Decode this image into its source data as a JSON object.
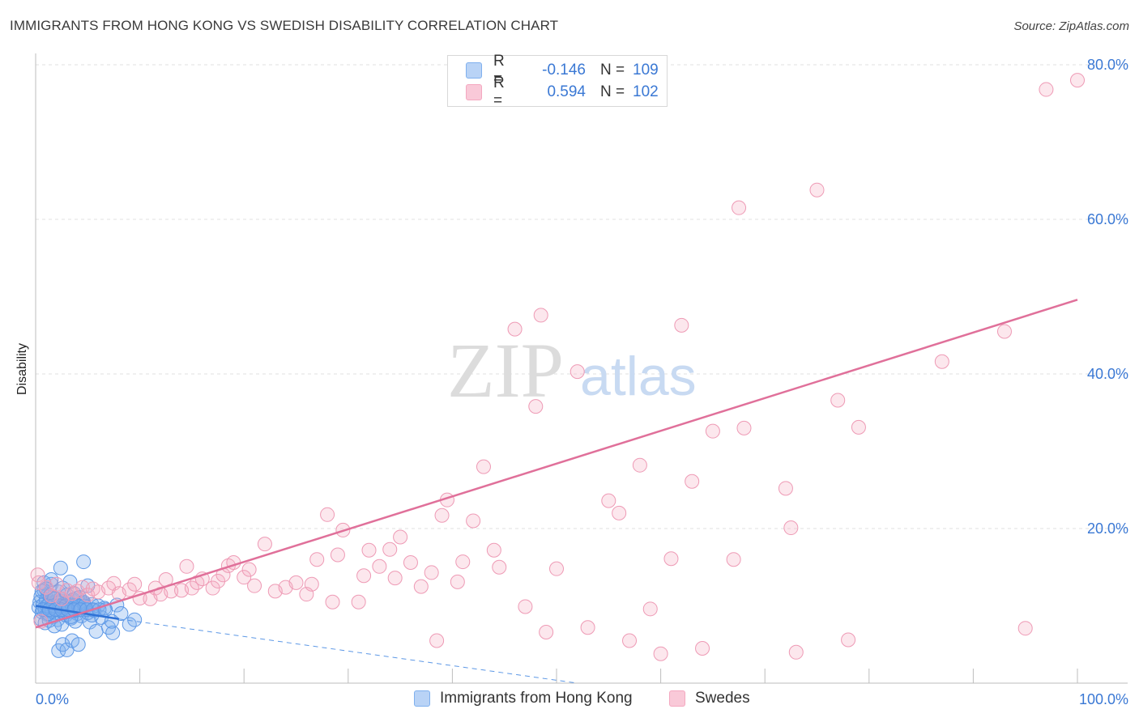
{
  "title": "IMMIGRANTS FROM HONG KONG VS SWEDISH DISABILITY CORRELATION CHART",
  "source": "Source: ZipAtlas.com",
  "watermark": {
    "zip": "ZIP",
    "atlas": "atlas"
  },
  "legend": {
    "rows": [
      {
        "r_label": "R =",
        "r_value": "-0.146",
        "n_label": "N =",
        "n_value": "109",
        "color": "#7fb0ee"
      },
      {
        "r_label": "R =",
        "r_value": "0.594",
        "n_label": "N =",
        "n_value": "102",
        "color": "#f4a8c0"
      }
    ]
  },
  "bottom_legend": [
    {
      "label": "Immigrants from Hong Kong",
      "color": "#7fb0ee"
    },
    {
      "label": "Swedes",
      "color": "#f4a8c0"
    }
  ],
  "chart_data": {
    "type": "scatter",
    "title": "IMMIGRANTS FROM HONG KONG VS SWEDISH DISABILITY CORRELATION CHART",
    "xlabel": "",
    "ylabel": "Disability",
    "xlim": [
      0,
      100
    ],
    "ylim": [
      0,
      80
    ],
    "x_tick_labels": [
      {
        "value": 0,
        "label": "0.0%"
      },
      {
        "value": 100,
        "label": "100.0%"
      }
    ],
    "y_tick_labels": [
      {
        "value": 20,
        "label": "20.0%"
      },
      {
        "value": 40,
        "label": "40.0%"
      },
      {
        "value": 60,
        "label": "60.0%"
      },
      {
        "value": 80,
        "label": "80.0%"
      }
    ],
    "grid": "horizontal dashed",
    "series": [
      {
        "name": "Immigrants from Hong Kong",
        "color": "#7fb0ee",
        "trend": {
          "x": [
            0,
            8
          ],
          "y": [
            10.0,
            8.3
          ],
          "dashed_extension_to": [
            52,
            0.0
          ]
        },
        "points": [
          [
            0.3,
            9.8
          ],
          [
            0.4,
            10.5
          ],
          [
            0.5,
            11.2
          ],
          [
            0.6,
            9.2
          ],
          [
            0.7,
            10.1
          ],
          [
            0.8,
            12.0
          ],
          [
            0.9,
            9.5
          ],
          [
            1.0,
            10.8
          ],
          [
            1.1,
            8.9
          ],
          [
            1.2,
            11.5
          ],
          [
            1.3,
            10.2
          ],
          [
            1.4,
            9.7
          ],
          [
            1.5,
            12.8
          ],
          [
            1.6,
            10.4
          ],
          [
            1.7,
            8.6
          ],
          [
            1.8,
            11.0
          ],
          [
            1.9,
            9.9
          ],
          [
            2.0,
            10.6
          ],
          [
            2.1,
            8.2
          ],
          [
            2.2,
            11.8
          ],
          [
            2.3,
            9.4
          ],
          [
            2.4,
            10.9
          ],
          [
            2.5,
            7.6
          ],
          [
            2.6,
            12.3
          ],
          [
            2.7,
            9.1
          ],
          [
            2.8,
            10.3
          ],
          [
            2.9,
            8.8
          ],
          [
            3.0,
            11.4
          ],
          [
            3.1,
            9.6
          ],
          [
            3.2,
            10.0
          ],
          [
            3.3,
            13.1
          ],
          [
            3.4,
            8.4
          ],
          [
            3.5,
            10.7
          ],
          [
            3.6,
            9.3
          ],
          [
            3.7,
            11.6
          ],
          [
            3.8,
            8.0
          ],
          [
            3.9,
            10.1
          ],
          [
            4.0,
            9.0
          ],
          [
            4.2,
            11.1
          ],
          [
            4.4,
            8.7
          ],
          [
            4.6,
            10.5
          ],
          [
            4.8,
            9.8
          ],
          [
            5.0,
            12.6
          ],
          [
            5.2,
            7.9
          ],
          [
            5.4,
            10.2
          ],
          [
            5.6,
            9.4
          ],
          [
            5.8,
            6.7
          ],
          [
            6.0,
            10.0
          ],
          [
            6.3,
            8.5
          ],
          [
            6.6,
            9.7
          ],
          [
            7.0,
            7.2
          ],
          [
            7.4,
            6.5
          ],
          [
            7.8,
            10.1
          ],
          [
            8.2,
            9.0
          ],
          [
            0.5,
            8.3
          ],
          [
            0.9,
            7.8
          ],
          [
            1.3,
            8.1
          ],
          [
            1.8,
            7.4
          ],
          [
            2.2,
            4.2
          ],
          [
            2.6,
            5.0
          ],
          [
            3.0,
            4.3
          ],
          [
            3.5,
            5.5
          ],
          [
            4.1,
            5.0
          ],
          [
            0.8,
            13.0
          ],
          [
            1.5,
            13.4
          ],
          [
            2.4,
            14.9
          ],
          [
            4.6,
            15.7
          ],
          [
            1.2,
            9.0
          ],
          [
            1.6,
            9.3
          ],
          [
            2.0,
            9.6
          ],
          [
            2.4,
            9.9
          ],
          [
            2.8,
            10.2
          ],
          [
            3.2,
            10.5
          ],
          [
            3.6,
            10.8
          ],
          [
            4.0,
            11.0
          ],
          [
            0.6,
            11.9
          ],
          [
            1.0,
            12.2
          ],
          [
            1.4,
            11.3
          ],
          [
            1.8,
            10.9
          ],
          [
            2.2,
            10.4
          ],
          [
            2.6,
            9.8
          ],
          [
            3.0,
            9.2
          ],
          [
            3.4,
            8.6
          ],
          [
            3.8,
            9.4
          ],
          [
            4.2,
            9.9
          ],
          [
            4.6,
            10.3
          ],
          [
            5.0,
            9.1
          ],
          [
            5.4,
            8.8
          ],
          [
            1.1,
            10.0
          ],
          [
            1.7,
            10.0
          ],
          [
            2.3,
            10.0
          ],
          [
            2.9,
            10.0
          ],
          [
            3.5,
            10.0
          ],
          [
            4.1,
            10.0
          ],
          [
            4.7,
            10.0
          ],
          [
            0.7,
            9.5
          ],
          [
            1.3,
            9.5
          ],
          [
            1.9,
            9.5
          ],
          [
            2.5,
            9.5
          ],
          [
            3.1,
            9.5
          ],
          [
            3.7,
            9.5
          ],
          [
            4.3,
            9.5
          ],
          [
            4.9,
            9.5
          ],
          [
            5.5,
            9.5
          ],
          [
            6.1,
            9.5
          ],
          [
            6.7,
            9.5
          ],
          [
            7.3,
            8.0
          ],
          [
            9.0,
            7.6
          ],
          [
            9.5,
            8.2
          ]
        ]
      },
      {
        "name": "Swedes",
        "color": "#f4a8c0",
        "trend": {
          "x": [
            0,
            100
          ],
          "y": [
            7.2,
            49.6
          ]
        },
        "points": [
          [
            0.3,
            13.0
          ],
          [
            1.0,
            12.4
          ],
          [
            1.5,
            11.3
          ],
          [
            2.0,
            12.8
          ],
          [
            2.5,
            10.9
          ],
          [
            3.0,
            12.0
          ],
          [
            3.5,
            11.6
          ],
          [
            4.0,
            11.9
          ],
          [
            4.5,
            12.4
          ],
          [
            5.0,
            11.4
          ],
          [
            5.5,
            12.2
          ],
          [
            6.0,
            11.8
          ],
          [
            7.0,
            12.3
          ],
          [
            7.5,
            12.9
          ],
          [
            8.0,
            11.6
          ],
          [
            9.0,
            12.1
          ],
          [
            9.5,
            12.8
          ],
          [
            10.0,
            11.0
          ],
          [
            11.0,
            10.9
          ],
          [
            11.5,
            12.3
          ],
          [
            12.0,
            11.5
          ],
          [
            13.0,
            11.9
          ],
          [
            14.0,
            12.0
          ],
          [
            14.5,
            15.1
          ],
          [
            15.0,
            12.3
          ],
          [
            15.5,
            13.0
          ],
          [
            16.0,
            13.5
          ],
          [
            17.0,
            12.3
          ],
          [
            17.5,
            13.2
          ],
          [
            18.0,
            14.0
          ],
          [
            18.5,
            15.2
          ],
          [
            19.0,
            15.6
          ],
          [
            20.0,
            13.7
          ],
          [
            20.5,
            14.7
          ],
          [
            21.0,
            12.6
          ],
          [
            22.0,
            18.0
          ],
          [
            23.0,
            11.9
          ],
          [
            24.0,
            12.4
          ],
          [
            25.0,
            13.0
          ],
          [
            26.0,
            11.5
          ],
          [
            27.0,
            16.0
          ],
          [
            28.0,
            21.8
          ],
          [
            28.5,
            10.5
          ],
          [
            29.0,
            16.6
          ],
          [
            29.5,
            19.8
          ],
          [
            31.0,
            10.5
          ],
          [
            31.5,
            13.9
          ],
          [
            32.0,
            17.2
          ],
          [
            33.0,
            15.1
          ],
          [
            34.0,
            17.3
          ],
          [
            34.5,
            13.6
          ],
          [
            35.0,
            18.9
          ],
          [
            36.0,
            15.6
          ],
          [
            37.0,
            12.5
          ],
          [
            38.0,
            14.3
          ],
          [
            39.0,
            21.7
          ],
          [
            39.5,
            23.7
          ],
          [
            40.5,
            13.1
          ],
          [
            41.0,
            15.7
          ],
          [
            42.0,
            21.0
          ],
          [
            43.0,
            28.0
          ],
          [
            44.0,
            17.2
          ],
          [
            44.5,
            15.0
          ],
          [
            46.0,
            45.8
          ],
          [
            47.0,
            9.9
          ],
          [
            48.0,
            35.8
          ],
          [
            48.5,
            47.6
          ],
          [
            49.0,
            6.6
          ],
          [
            50.0,
            14.8
          ],
          [
            52.0,
            40.3
          ],
          [
            53.0,
            7.2
          ],
          [
            55.0,
            23.6
          ],
          [
            56.0,
            22.0
          ],
          [
            57.0,
            5.5
          ],
          [
            58.0,
            28.2
          ],
          [
            59.0,
            9.6
          ],
          [
            60.0,
            3.8
          ],
          [
            61.0,
            16.1
          ],
          [
            62.0,
            46.3
          ],
          [
            63.0,
            26.1
          ],
          [
            64.0,
            4.5
          ],
          [
            65.0,
            32.6
          ],
          [
            67.0,
            16.0
          ],
          [
            67.5,
            61.5
          ],
          [
            68.0,
            33.0
          ],
          [
            72.0,
            25.2
          ],
          [
            72.5,
            20.1
          ],
          [
            73.0,
            4.0
          ],
          [
            75.0,
            63.8
          ],
          [
            77.0,
            36.6
          ],
          [
            78.0,
            5.6
          ],
          [
            79.0,
            33.1
          ],
          [
            87.0,
            41.6
          ],
          [
            93.0,
            45.5
          ],
          [
            95.0,
            7.1
          ],
          [
            97.0,
            76.8
          ],
          [
            100.0,
            78.0
          ],
          [
            0.5,
            8.0
          ],
          [
            26.5,
            12.8
          ],
          [
            38.5,
            5.5
          ],
          [
            0.2,
            14.0
          ],
          [
            12.5,
            13.4
          ]
        ]
      }
    ]
  }
}
